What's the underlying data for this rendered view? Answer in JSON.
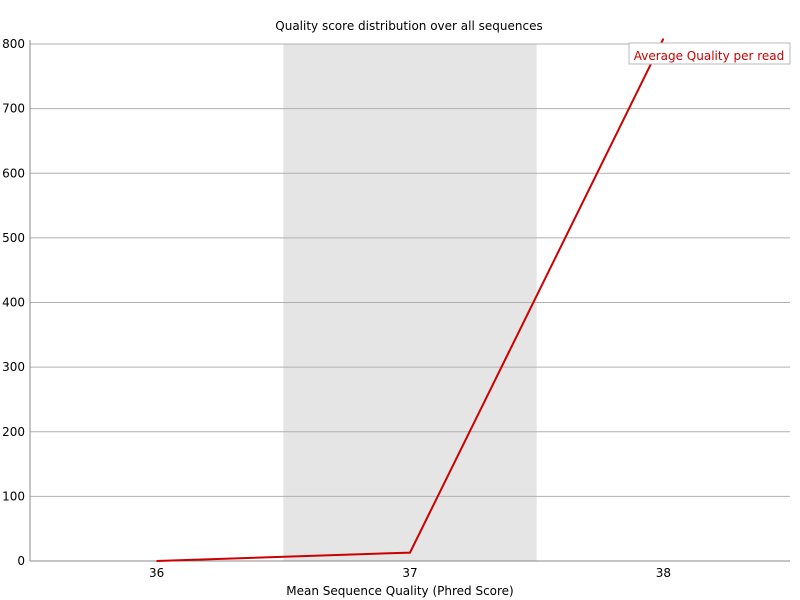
{
  "chart_data": {
    "type": "line",
    "title": "Quality score distribution over all sequences",
    "xlabel": "Mean Sequence Quality (Phred Score)",
    "ylabel": "",
    "x": [
      36,
      37,
      38
    ],
    "x_tick_labels": [
      "36",
      "37",
      "38"
    ],
    "ylim": [
      0,
      800
    ],
    "y_ticks": [
      0,
      100,
      200,
      300,
      400,
      500,
      600,
      700,
      800
    ],
    "y_tick_labels": [
      "0",
      "100",
      "200",
      "300",
      "400",
      "500",
      "600",
      "700",
      "800"
    ],
    "series": [
      {
        "name": "Average Quality per read",
        "values": [
          0,
          13,
          808
        ]
      }
    ],
    "grid": "horizontal",
    "legend_position": "top-right",
    "shaded_band_around": 37,
    "colors": {
      "line": "#cc0000",
      "band": "#e5e5e5",
      "grid": "#b0b0b0",
      "axis": "#888888",
      "legend_text": "#cc0000"
    }
  }
}
